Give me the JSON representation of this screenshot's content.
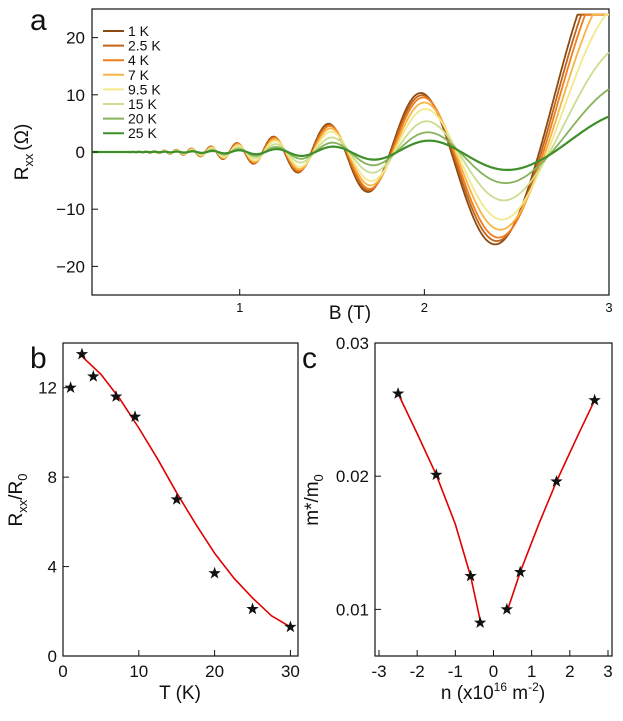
{
  "panels": {
    "a": "a",
    "b": "b",
    "c": "c"
  },
  "chart_data": [
    {
      "panel": "a",
      "type": "line",
      "xlabel": "B (T)",
      "ylabel_main": "R",
      "ylabel_sub": "xx",
      "ylabel_unit": "(Ω)",
      "xlim": [
        0.2,
        3.0
      ],
      "ylim": [
        -25,
        25
      ],
      "xticks": [
        1,
        2,
        3
      ],
      "yticks": [
        -20,
        -10,
        0,
        10,
        20
      ],
      "legend_position": "top-left",
      "series": [
        {
          "name": "1 K",
          "color": "#8B4A12",
          "amp": 22
        },
        {
          "name": "2.5 K",
          "color": "#C0651A",
          "amp": 21
        },
        {
          "name": "4 K",
          "color": "#F07E1E",
          "amp": 20
        },
        {
          "name": "7 K",
          "color": "#F8B544",
          "amp": 18
        },
        {
          "name": "9.5 K",
          "color": "#F2E98A",
          "amp": 15.5
        },
        {
          "name": "15 K",
          "color": "#C9DE8E",
          "amp": 11
        },
        {
          "name": "20 K",
          "color": "#86B35A",
          "amp": 7
        },
        {
          "name": "25 K",
          "color": "#3E8E29",
          "amp": 4
        }
      ]
    },
    {
      "panel": "b",
      "type": "scatter",
      "xlabel": "T (K)",
      "ylabel_main": "R",
      "ylabel_sub1": "xx",
      "ylabel_mid": "/R",
      "ylabel_sub2": "0",
      "xlim": [
        0,
        31
      ],
      "ylim": [
        0,
        14
      ],
      "xticks": [
        0,
        10,
        20,
        30
      ],
      "yticks": [
        0,
        4,
        8,
        12
      ],
      "points": [
        {
          "x": 1,
          "y": 12.0
        },
        {
          "x": 2.5,
          "y": 13.5
        },
        {
          "x": 4,
          "y": 12.5
        },
        {
          "x": 7,
          "y": 11.6
        },
        {
          "x": 9.5,
          "y": 10.7
        },
        {
          "x": 15,
          "y": 7.0
        },
        {
          "x": 20,
          "y": 3.7
        },
        {
          "x": 25,
          "y": 2.1
        },
        {
          "x": 30,
          "y": 1.3
        }
      ],
      "fit": [
        {
          "x": 2.5,
          "y": 13.4
        },
        {
          "x": 5,
          "y": 12.6
        },
        {
          "x": 7.5,
          "y": 11.5
        },
        {
          "x": 10,
          "y": 10.2
        },
        {
          "x": 12.5,
          "y": 8.8
        },
        {
          "x": 15,
          "y": 7.3
        },
        {
          "x": 17.5,
          "y": 5.9
        },
        {
          "x": 20,
          "y": 4.6
        },
        {
          "x": 22.5,
          "y": 3.5
        },
        {
          "x": 25,
          "y": 2.6
        },
        {
          "x": 27.5,
          "y": 1.8
        },
        {
          "x": 30,
          "y": 1.3
        }
      ],
      "fit_color": "#E00000"
    },
    {
      "panel": "c",
      "type": "scatter",
      "xlabel_pre": "n (x10",
      "xlabel_sup1": "16",
      "xlabel_mid": " m",
      "xlabel_sup2": "-2",
      "xlabel_post": ")",
      "ylabel_main": "m*/m",
      "ylabel_sub": "0",
      "xlim": [
        -3,
        3
      ],
      "ylim": [
        0.0065,
        0.03
      ],
      "xticks": [
        -3,
        -2,
        -1,
        0,
        1,
        2,
        3
      ],
      "yticks": [
        0.01,
        0.02,
        0.03
      ],
      "ytick_labels": [
        "0.01",
        "0.02",
        "0.03"
      ],
      "points": [
        {
          "x": -2.5,
          "y": 0.0262
        },
        {
          "x": -1.5,
          "y": 0.0201
        },
        {
          "x": -0.6,
          "y": 0.0125
        },
        {
          "x": -0.35,
          "y": 0.009
        },
        {
          "x": 0.35,
          "y": 0.01
        },
        {
          "x": 0.7,
          "y": 0.0128
        },
        {
          "x": 1.65,
          "y": 0.0196
        },
        {
          "x": 2.65,
          "y": 0.0257
        }
      ],
      "fit_left": [
        {
          "x": -2.5,
          "y": 0.0262
        },
        {
          "x": -2.0,
          "y": 0.0232
        },
        {
          "x": -1.5,
          "y": 0.0201
        },
        {
          "x": -1.0,
          "y": 0.0164
        },
        {
          "x": -0.6,
          "y": 0.0125
        },
        {
          "x": -0.35,
          "y": 0.0092
        }
      ],
      "fit_right": [
        {
          "x": 0.35,
          "y": 0.0098
        },
        {
          "x": 0.7,
          "y": 0.0128
        },
        {
          "x": 1.2,
          "y": 0.0165
        },
        {
          "x": 1.65,
          "y": 0.0196
        },
        {
          "x": 2.2,
          "y": 0.023
        },
        {
          "x": 2.65,
          "y": 0.0257
        }
      ],
      "fit_color": "#E00000"
    }
  ]
}
